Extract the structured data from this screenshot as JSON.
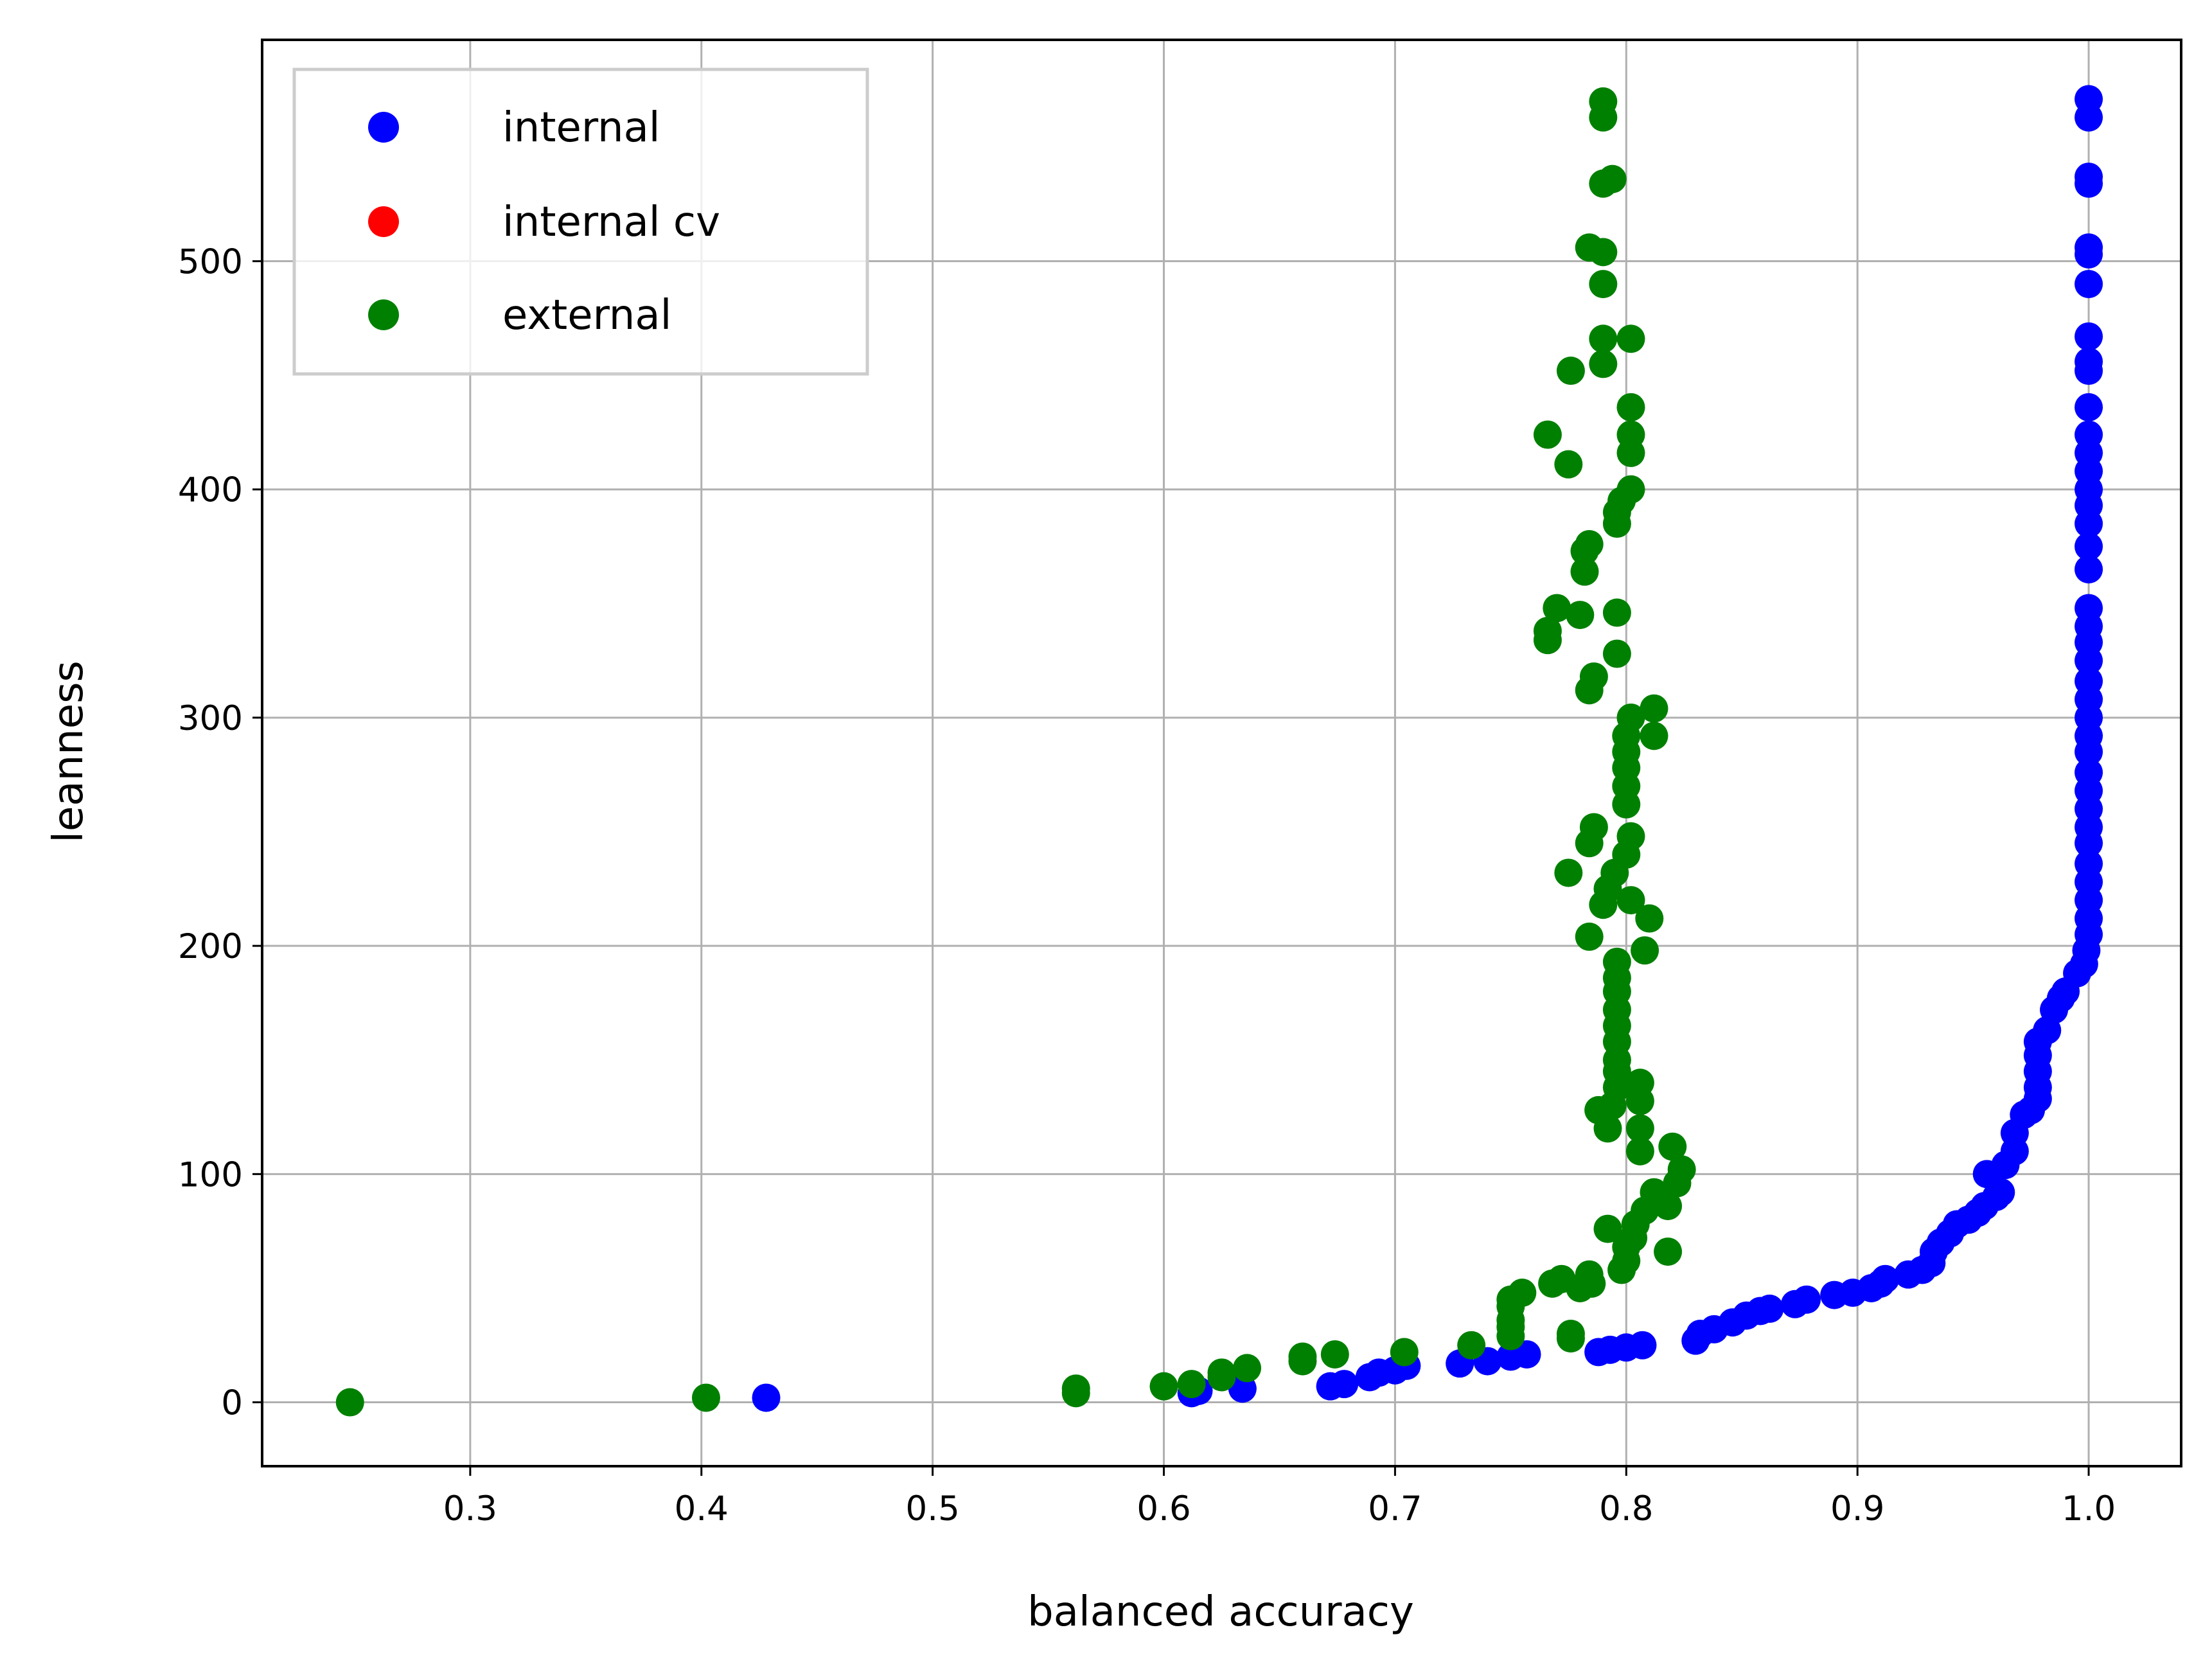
{
  "chart_data": {
    "type": "scatter",
    "title": "",
    "xlabel": "balanced accuracy",
    "ylabel": "leanness",
    "xlim": [
      0.21,
      1.04
    ],
    "ylim": [
      -28,
      597
    ],
    "xticks": [
      "0.3",
      "0.4",
      "0.5",
      "0.6",
      "0.7",
      "0.8",
      "0.9",
      "1.0"
    ],
    "yticks": [
      "0",
      "100",
      "200",
      "300",
      "400",
      "500"
    ],
    "grid": true,
    "legend_position": "top-left",
    "series": [
      {
        "name": "internal",
        "color": "#0000ff",
        "points": [
          [
            0.428,
            2
          ],
          [
            0.612,
            4
          ],
          [
            0.615,
            5
          ],
          [
            0.634,
            6
          ],
          [
            0.672,
            7
          ],
          [
            0.678,
            8
          ],
          [
            0.689,
            11
          ],
          [
            0.693,
            13
          ],
          [
            0.7,
            14
          ],
          [
            0.704,
            16
          ],
          [
            0.705,
            16
          ],
          [
            0.728,
            17
          ],
          [
            0.74,
            18
          ],
          [
            0.75,
            20
          ],
          [
            0.757,
            21
          ],
          [
            0.788,
            22
          ],
          [
            0.793,
            23
          ],
          [
            0.8,
            24
          ],
          [
            0.807,
            25
          ],
          [
            0.83,
            27
          ],
          [
            0.832,
            30
          ],
          [
            0.838,
            32
          ],
          [
            0.846,
            35
          ],
          [
            0.852,
            38
          ],
          [
            0.858,
            40
          ],
          [
            0.862,
            41
          ],
          [
            0.873,
            43
          ],
          [
            0.878,
            45
          ],
          [
            0.89,
            47
          ],
          [
            0.898,
            48
          ],
          [
            0.906,
            50
          ],
          [
            0.91,
            52
          ],
          [
            0.912,
            54
          ],
          [
            0.922,
            56
          ],
          [
            0.928,
            58
          ],
          [
            0.932,
            61
          ],
          [
            0.933,
            66
          ],
          [
            0.936,
            70
          ],
          [
            0.94,
            74
          ],
          [
            0.943,
            78
          ],
          [
            0.948,
            80
          ],
          [
            0.952,
            83
          ],
          [
            0.955,
            86
          ],
          [
            0.96,
            90
          ],
          [
            0.962,
            92
          ],
          [
            0.956,
            100
          ],
          [
            0.964,
            104
          ],
          [
            0.968,
            110
          ],
          [
            0.968,
            118
          ],
          [
            0.972,
            126
          ],
          [
            0.975,
            128
          ],
          [
            0.978,
            133
          ],
          [
            0.978,
            138
          ],
          [
            0.978,
            145
          ],
          [
            0.978,
            152
          ],
          [
            0.978,
            158
          ],
          [
            0.982,
            163
          ],
          [
            0.985,
            172
          ],
          [
            0.988,
            177
          ],
          [
            0.99,
            180
          ],
          [
            0.995,
            188
          ],
          [
            0.998,
            192
          ],
          [
            0.999,
            198
          ],
          [
            1.0,
            205
          ],
          [
            1.0,
            212
          ],
          [
            1.0,
            220
          ],
          [
            1.0,
            228
          ],
          [
            1.0,
            236
          ],
          [
            1.0,
            245
          ],
          [
            1.0,
            252
          ],
          [
            1.0,
            260
          ],
          [
            1.0,
            268
          ],
          [
            1.0,
            276
          ],
          [
            1.0,
            285
          ],
          [
            1.0,
            292
          ],
          [
            1.0,
            300
          ],
          [
            1.0,
            308
          ],
          [
            1.0,
            316
          ],
          [
            1.0,
            325
          ],
          [
            1.0,
            333
          ],
          [
            1.0,
            340
          ],
          [
            1.0,
            348
          ],
          [
            1.0,
            365
          ],
          [
            1.0,
            375
          ],
          [
            1.0,
            385
          ],
          [
            1.0,
            393
          ],
          [
            1.0,
            400
          ],
          [
            1.0,
            408
          ],
          [
            1.0,
            416
          ],
          [
            1.0,
            424
          ],
          [
            1.0,
            436
          ],
          [
            1.0,
            452
          ],
          [
            1.0,
            456
          ],
          [
            1.0,
            467
          ],
          [
            1.0,
            490
          ],
          [
            1.0,
            503
          ],
          [
            1.0,
            506
          ],
          [
            1.0,
            534
          ],
          [
            1.0,
            537
          ],
          [
            1.0,
            563
          ],
          [
            1.0,
            571
          ]
        ]
      },
      {
        "name": "internal cv",
        "color": "#ff0000",
        "points": []
      },
      {
        "name": "external",
        "color": "#008000",
        "points": [
          [
            0.248,
            0
          ],
          [
            0.402,
            2
          ],
          [
            0.562,
            4
          ],
          [
            0.562,
            6
          ],
          [
            0.6,
            7
          ],
          [
            0.612,
            8
          ],
          [
            0.625,
            11
          ],
          [
            0.625,
            13
          ],
          [
            0.636,
            15
          ],
          [
            0.66,
            18
          ],
          [
            0.66,
            20
          ],
          [
            0.674,
            21
          ],
          [
            0.704,
            22
          ],
          [
            0.733,
            25
          ],
          [
            0.75,
            29
          ],
          [
            0.75,
            33
          ],
          [
            0.75,
            36
          ],
          [
            0.75,
            42
          ],
          [
            0.75,
            45
          ],
          [
            0.755,
            48
          ],
          [
            0.768,
            52
          ],
          [
            0.772,
            54
          ],
          [
            0.776,
            30
          ],
          [
            0.776,
            28
          ],
          [
            0.78,
            50
          ],
          [
            0.784,
            56
          ],
          [
            0.785,
            52
          ],
          [
            0.798,
            58
          ],
          [
            0.8,
            62
          ],
          [
            0.8,
            68
          ],
          [
            0.803,
            72
          ],
          [
            0.804,
            78
          ],
          [
            0.808,
            84
          ],
          [
            0.812,
            92
          ],
          [
            0.816,
            88
          ],
          [
            0.818,
            66
          ],
          [
            0.818,
            86
          ],
          [
            0.82,
            112
          ],
          [
            0.822,
            96
          ],
          [
            0.824,
            102
          ],
          [
            0.792,
            76
          ],
          [
            0.788,
            128
          ],
          [
            0.792,
            120
          ],
          [
            0.794,
            130
          ],
          [
            0.796,
            138
          ],
          [
            0.796,
            145
          ],
          [
            0.796,
            150
          ],
          [
            0.796,
            158
          ],
          [
            0.796,
            165
          ],
          [
            0.796,
            172
          ],
          [
            0.796,
            180
          ],
          [
            0.796,
            186
          ],
          [
            0.796,
            193
          ],
          [
            0.806,
            110
          ],
          [
            0.806,
            120
          ],
          [
            0.806,
            132
          ],
          [
            0.806,
            140
          ],
          [
            0.808,
            198
          ],
          [
            0.81,
            212
          ],
          [
            0.784,
            204
          ],
          [
            0.79,
            218
          ],
          [
            0.792,
            225
          ],
          [
            0.795,
            232
          ],
          [
            0.8,
            240
          ],
          [
            0.802,
            248
          ],
          [
            0.802,
            220
          ],
          [
            0.775,
            232
          ],
          [
            0.784,
            245
          ],
          [
            0.786,
            252
          ],
          [
            0.8,
            262
          ],
          [
            0.8,
            270
          ],
          [
            0.8,
            278
          ],
          [
            0.8,
            285
          ],
          [
            0.8,
            292
          ],
          [
            0.802,
            300
          ],
          [
            0.812,
            292
          ],
          [
            0.812,
            304
          ],
          [
            0.784,
            312
          ],
          [
            0.786,
            318
          ],
          [
            0.796,
            328
          ],
          [
            0.766,
            334
          ],
          [
            0.766,
            338
          ],
          [
            0.77,
            348
          ],
          [
            0.78,
            345
          ],
          [
            0.796,
            346
          ],
          [
            0.782,
            364
          ],
          [
            0.782,
            373
          ],
          [
            0.784,
            376
          ],
          [
            0.796,
            385
          ],
          [
            0.796,
            390
          ],
          [
            0.798,
            395
          ],
          [
            0.802,
            400
          ],
          [
            0.775,
            411
          ],
          [
            0.766,
            424
          ],
          [
            0.802,
            416
          ],
          [
            0.802,
            424
          ],
          [
            0.802,
            436
          ],
          [
            0.776,
            452
          ],
          [
            0.79,
            455
          ],
          [
            0.79,
            466
          ],
          [
            0.802,
            466
          ],
          [
            0.79,
            490
          ],
          [
            0.784,
            506
          ],
          [
            0.79,
            504
          ],
          [
            0.79,
            534
          ],
          [
            0.794,
            536
          ],
          [
            0.79,
            563
          ],
          [
            0.79,
            570
          ]
        ]
      }
    ]
  }
}
